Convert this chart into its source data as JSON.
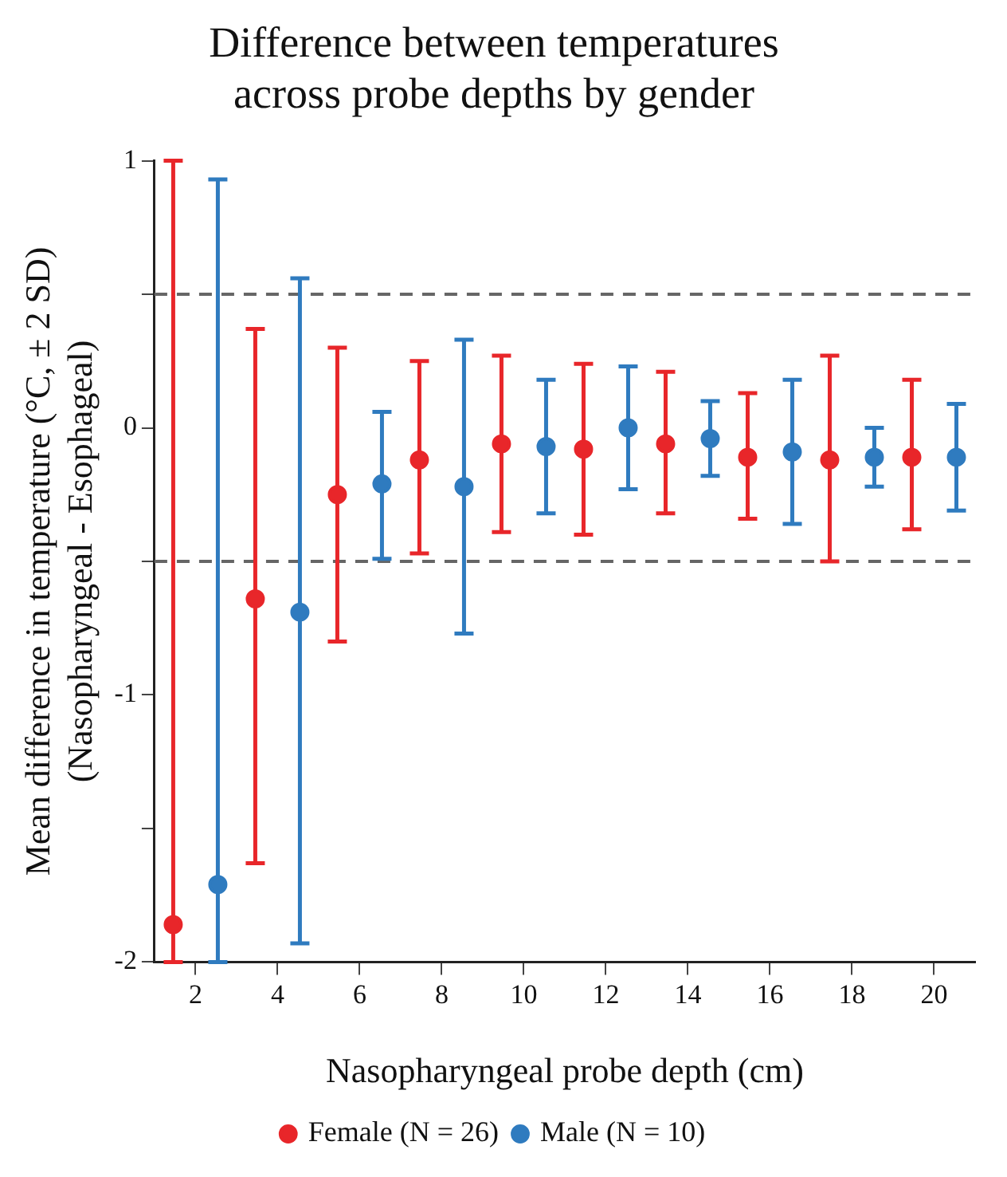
{
  "chart_data": {
    "type": "scatter",
    "title": "Difference between temperatures\nacross probe depths by gender",
    "xlabel": "Nasopharyngeal probe depth (cm)",
    "ylabel": "Mean difference in temperature (°C, ± 2 SD)\n(Nasopharyngeal - Esophageal)",
    "categories": [
      "2",
      "4",
      "6",
      "8",
      "10",
      "12",
      "14",
      "16",
      "18",
      "20"
    ],
    "series": [
      {
        "name": "Female (N = 26)",
        "color": "#e8262a",
        "values": [
          -1.86,
          -0.64,
          -0.25,
          -0.12,
          -0.06,
          -0.08,
          -0.06,
          -0.11,
          -0.12,
          -0.11
        ],
        "errors": [
          [
            -2,
            1
          ],
          [
            -1.63,
            0.37
          ],
          [
            -0.8,
            0.3
          ],
          [
            -0.47,
            0.25
          ],
          [
            -0.39,
            0.27
          ],
          [
            -0.4,
            0.24
          ],
          [
            -0.32,
            0.21
          ],
          [
            -0.34,
            0.13
          ],
          [
            -0.5,
            0.27
          ],
          [
            -0.38,
            0.18
          ]
        ]
      },
      {
        "name": "Male (N = 10)",
        "color": "#2f7bbf",
        "values": [
          -1.71,
          -0.69,
          -0.21,
          -0.22,
          -0.07,
          0,
          -0.04,
          -0.09,
          -0.11,
          -0.11
        ],
        "errors": [
          [
            -2,
            0.93
          ],
          [
            -1.93,
            0.56
          ],
          [
            -0.49,
            0.06
          ],
          [
            -0.77,
            0.33
          ],
          [
            -0.32,
            0.18
          ],
          [
            -0.23,
            0.23
          ],
          [
            -0.18,
            0.1
          ],
          [
            -0.36,
            0.18
          ],
          [
            -0.22,
            0
          ],
          [
            -0.31,
            0.09
          ]
        ]
      }
    ],
    "ylim": [
      -2,
      1
    ],
    "yticks": [
      -2,
      {
        "value": -1.5,
        "label": null
      },
      -1,
      {
        "value": -0.5,
        "label": null
      },
      0,
      {
        "value": 0.5,
        "label": null
      },
      1
    ],
    "ref_lines": [
      {
        "axis": "y",
        "value": 0.5,
        "color": "#666666",
        "line_style": "dashed"
      },
      {
        "axis": "y",
        "value": -0.5,
        "color": "#666666",
        "line_style": "dashed"
      }
    ],
    "grid": false,
    "legend": "bottom",
    "marker": "circle"
  }
}
